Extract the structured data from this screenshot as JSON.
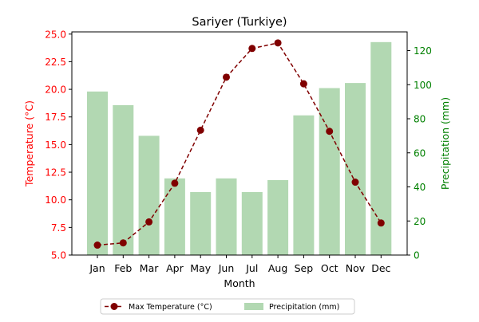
{
  "chart_data": {
    "type": "bar+line",
    "title": "Sariyer (Turkiye)",
    "xlabel": "Month",
    "ylabel_left": "Temperature (°C)",
    "ylabel_right": "Precipitation (mm)",
    "categories": [
      "Jan",
      "Feb",
      "Mar",
      "Apr",
      "May",
      "Jun",
      "Jul",
      "Aug",
      "Sep",
      "Oct",
      "Nov",
      "Dec"
    ],
    "ylim_left": [
      5.0,
      25.2
    ],
    "ylim_right": [
      0,
      131
    ],
    "yticks_left": [
      "5.0",
      "7.5",
      "10.0",
      "12.5",
      "15.0",
      "17.5",
      "20.0",
      "22.5",
      "25.0"
    ],
    "yticks_right": [
      "0",
      "20",
      "40",
      "60",
      "80",
      "100",
      "120"
    ],
    "series": [
      {
        "name": "Max Temperature (°C)",
        "type": "line",
        "axis": "left",
        "color": "#800000",
        "line_style": "dashed",
        "marker": "circle",
        "values": [
          5.9,
          6.1,
          8.0,
          11.5,
          16.3,
          21.1,
          23.7,
          24.2,
          20.5,
          16.2,
          11.6,
          7.9
        ]
      },
      {
        "name": "Precipitation (mm)",
        "type": "bar",
        "axis": "right",
        "color": "#b2d8b2",
        "values": [
          96,
          88,
          70,
          45,
          37,
          45,
          37,
          44,
          82,
          98,
          101,
          125
        ]
      }
    ],
    "left_axis_color": "#ff0000",
    "right_axis_color": "#008000",
    "legend_position": "bottom-center",
    "grid": false
  }
}
